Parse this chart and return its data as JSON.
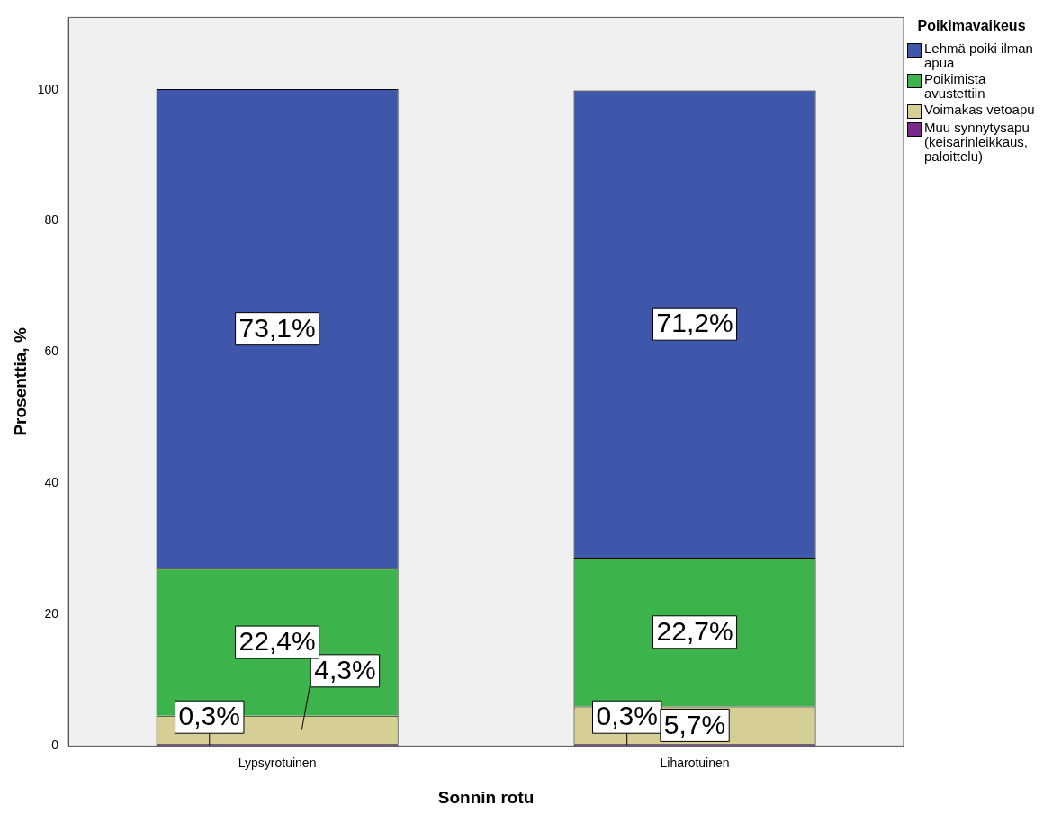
{
  "chart_data": {
    "type": "bar",
    "stacked": true,
    "xlabel": "Sonnin rotu",
    "ylabel": "Prosenttia, %",
    "legend_title": "Poikimavaikeus",
    "categories": [
      "Lypsyrotuinen",
      "Liharotuinen"
    ],
    "series": [
      {
        "name": "Muu synnytysapu (keisarinleikkaus, paloittelu)",
        "color": "#7b2a8c",
        "values": [
          0.3,
          0.3
        ],
        "value_labels": [
          "0,3%",
          "0,3%"
        ]
      },
      {
        "name": "Voimakas vetoapu",
        "color": "#d6cf95",
        "values": [
          4.3,
          5.7
        ],
        "value_labels": [
          "4,3%",
          "5,7%"
        ]
      },
      {
        "name": "Poikimista avustettiin",
        "color": "#3cb44b",
        "values": [
          22.4,
          22.7
        ],
        "value_labels": [
          "22,4%",
          "22,7%"
        ]
      },
      {
        "name": "Lehmä poiki ilman apua",
        "color": "#3e57ab",
        "values": [
          73.1,
          71.2
        ],
        "value_labels": [
          "73,1%",
          "71,2%"
        ]
      }
    ],
    "ylim": [
      0,
      111
    ],
    "yticks": [
      0,
      20,
      40,
      60,
      80,
      100
    ],
    "grid": false,
    "legend": "right"
  }
}
